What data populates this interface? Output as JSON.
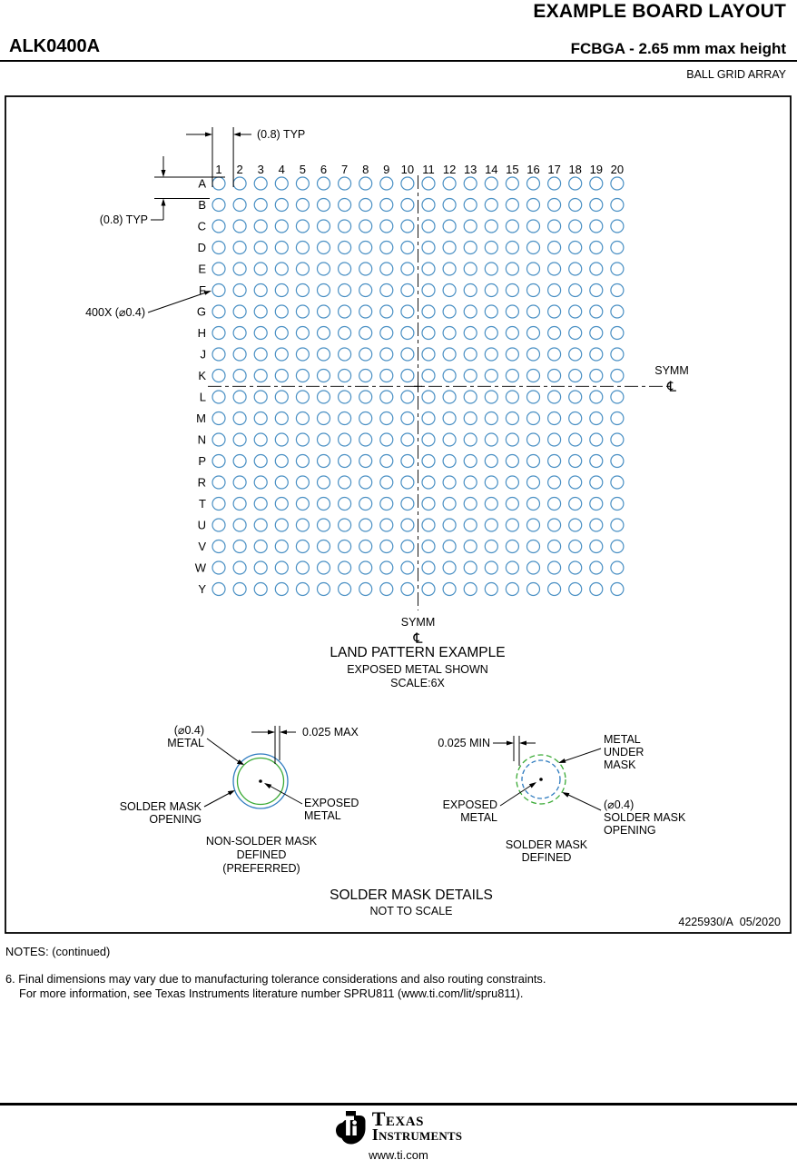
{
  "header": {
    "title": "EXAMPLE BOARD LAYOUT",
    "part_number": "ALK0400A",
    "package": "FCBGA - 2.65 mm max height",
    "subtitle": "BALL GRID ARRAY"
  },
  "drawing": {
    "pitch_note_top": "(0.8) TYP",
    "pitch_note_left": "(0.8) TYP",
    "ball_count_note": "400X (⌀0.4)",
    "symm_right": "SYMM",
    "symm_bottom": "SYMM",
    "centerline_symbol": "℄",
    "grid": {
      "rows": [
        "A",
        "B",
        "C",
        "D",
        "E",
        "F",
        "G",
        "H",
        "J",
        "K",
        "L",
        "M",
        "N",
        "P",
        "R",
        "T",
        "U",
        "V",
        "W",
        "Y"
      ],
      "columns": [
        "1",
        "2",
        "3",
        "4",
        "5",
        "6",
        "7",
        "8",
        "9",
        "10",
        "11",
        "12",
        "13",
        "14",
        "15",
        "16",
        "17",
        "18",
        "19",
        "20"
      ]
    },
    "land_pattern": {
      "title": "LAND PATTERN EXAMPLE",
      "line2": "EXPOSED METAL SHOWN",
      "line3": "SCALE:6X"
    },
    "nsmd": {
      "metal_label_1": "(⌀0.4)",
      "metal_label_2": "METAL",
      "dim": "0.025 MAX",
      "mask_label_1": "SOLDER MASK",
      "mask_label_2": "OPENING",
      "exposed_1": "EXPOSED",
      "exposed_2": "METAL",
      "caption_1": "NON-SOLDER MASK",
      "caption_2": "DEFINED",
      "caption_3": "(PREFERRED)"
    },
    "smd": {
      "dim": "0.025 MIN",
      "metal_under_1": "METAL",
      "metal_under_2": "UNDER",
      "metal_under_3": "MASK",
      "exposed_1": "EXPOSED",
      "exposed_2": "METAL",
      "opening_1": "(⌀0.4)",
      "opening_2": "SOLDER MASK",
      "opening_3": "OPENING",
      "caption_1": "SOLDER MASK",
      "caption_2": "DEFINED"
    },
    "details_title": "SOLDER MASK DETAILS",
    "details_subtitle": "NOT TO SCALE",
    "doc_number": "4225930/A  05/2020"
  },
  "notes": {
    "heading": "NOTES: (continued)",
    "note6_line1": "6. Final dimensions may vary due to manufacturing tolerance considerations and also routing constraints.",
    "note6_line2": "For more information, see Texas Instruments literature number SPRU811 (www.ti.com/lit/spru811)."
  },
  "footer": {
    "brand_1": "Texas",
    "brand_2": "Instruments",
    "url": "www.ti.com"
  },
  "colors": {
    "ball": "#4a90c4",
    "mask_blue": "#2e7bbf",
    "metal_green": "#3aaa35"
  }
}
